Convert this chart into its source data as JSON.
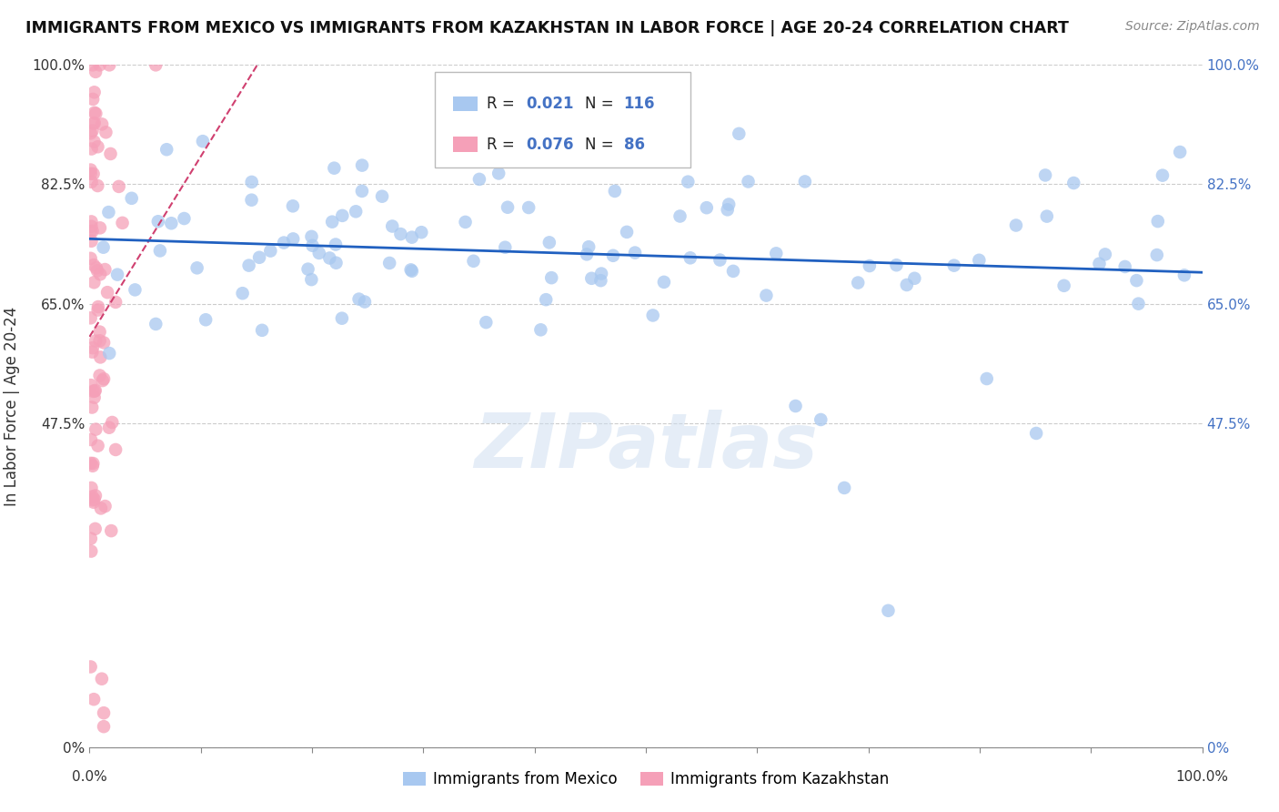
{
  "title": "IMMIGRANTS FROM MEXICO VS IMMIGRANTS FROM KAZAKHSTAN IN LABOR FORCE | AGE 20-24 CORRELATION CHART",
  "source": "Source: ZipAtlas.com",
  "ylabel": "In Labor Force | Age 20-24",
  "ytick_labels": [
    "0%",
    "47.5%",
    "65.0%",
    "82.5%",
    "100.0%"
  ],
  "ytick_values": [
    0.0,
    0.475,
    0.65,
    0.825,
    1.0
  ],
  "legend_r1": "0.021",
  "legend_n1": "116",
  "legend_r2": "0.076",
  "legend_n2": "86",
  "legend_label1": "Immigrants from Mexico",
  "legend_label2": "Immigrants from Kazakhstan",
  "blue_color": "#a8c8f0",
  "pink_color": "#f5a0b8",
  "trend_blue": "#2060c0",
  "trend_pink": "#d04070",
  "watermark": "ZIPatlas",
  "r_color": "#4472c4",
  "text_color": "#333333"
}
